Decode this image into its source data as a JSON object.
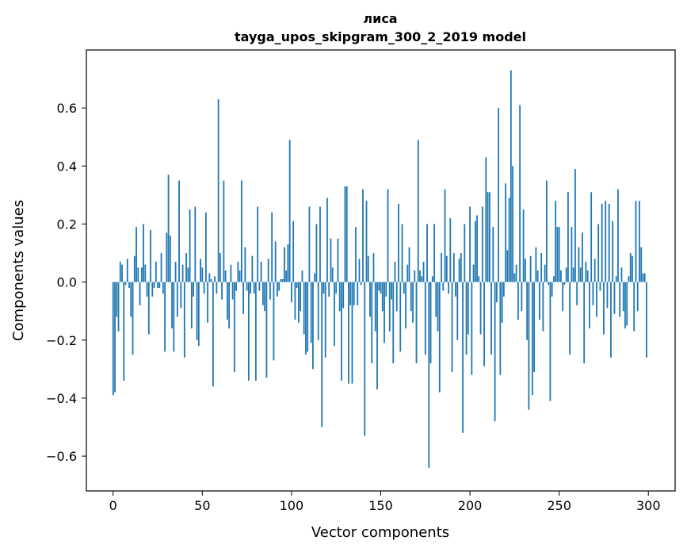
{
  "chart_data": {
    "type": "bar",
    "title": "лиса",
    "subtitle": "tayga_upos_skipgram_300_2_2019 model",
    "xlabel": "Vector components",
    "ylabel": "Components values",
    "xlim": [
      -15,
      315
    ],
    "ylim": [
      -0.72,
      0.8
    ],
    "x_ticks": [
      0,
      50,
      100,
      150,
      200,
      250,
      300
    ],
    "y_ticks": [
      -0.6,
      -0.4,
      -0.2,
      0.0,
      0.2,
      0.4,
      0.6
    ],
    "y_tick_labels": [
      "−0.6",
      "−0.4",
      "−0.2",
      "0.0",
      "0.2",
      "0.4",
      "0.6"
    ],
    "bar_color": "#1f77b4",
    "grid": false,
    "legend": "none",
    "values": [
      -0.39,
      -0.38,
      -0.12,
      -0.17,
      0.07,
      0.06,
      -0.34,
      -0.01,
      0.08,
      -0.02,
      -0.12,
      -0.25,
      0.09,
      0.19,
      0.05,
      -0.08,
      0.05,
      0.2,
      0.06,
      -0.05,
      -0.18,
      0.18,
      -0.05,
      -0.02,
      0.07,
      -0.02,
      -0.02,
      0.1,
      -0.04,
      -0.24,
      0.17,
      0.37,
      0.16,
      -0.16,
      -0.24,
      0.07,
      -0.12,
      0.35,
      -0.09,
      0.06,
      -0.26,
      0.1,
      0.05,
      0.25,
      -0.16,
      -0.05,
      0.26,
      -0.2,
      -0.22,
      0.08,
      0.05,
      -0.04,
      0.24,
      -0.14,
      0.03,
      0.01,
      -0.36,
      0.02,
      -0.04,
      0.63,
      0.1,
      -0.06,
      0.35,
      0.04,
      -0.13,
      -0.16,
      0.06,
      -0.06,
      -0.31,
      -0.03,
      0.07,
      0.04,
      0.35,
      -0.11,
      0.12,
      -0.03,
      -0.34,
      -0.04,
      0.09,
      -0.04,
      -0.34,
      0.26,
      -0.03,
      0.07,
      -0.08,
      -0.1,
      -0.33,
      0.08,
      -0.06,
      0.24,
      -0.27,
      0.14,
      -0.05,
      -0.03,
      0.01,
      0.01,
      0.12,
      0.04,
      0.13,
      0.49,
      -0.07,
      0.21,
      -0.13,
      -0.02,
      -0.14,
      -0.1,
      0.04,
      -0.18,
      -0.25,
      -0.24,
      0.26,
      -0.21,
      -0.3,
      0.03,
      0.2,
      -0.2,
      0.26,
      -0.5,
      -0.04,
      -0.26,
      0.29,
      -0.05,
      0.15,
      0.05,
      -0.22,
      -0.04,
      0.15,
      -0.1,
      -0.34,
      -0.09,
      0.33,
      0.33,
      -0.35,
      -0.08,
      -0.35,
      -0.08,
      0.19,
      -0.08,
      0.08,
      -0.01,
      0.32,
      -0.53,
      0.28,
      0.09,
      -0.12,
      -0.28,
      0.1,
      -0.17,
      -0.37,
      -0.03,
      -0.04,
      -0.1,
      -0.21,
      -0.05,
      0.32,
      -0.17,
      -0.06,
      -0.28,
      0.07,
      -0.1,
      0.27,
      -0.24,
      0.2,
      -0.04,
      -0.16,
      0.06,
      0.12,
      -0.1,
      -0.14,
      0.04,
      -0.28,
      0.49,
      0.04,
      0.02,
      0.07,
      -0.25,
      0.2,
      -0.64,
      -0.28,
      0.02,
      0.2,
      -0.12,
      -0.17,
      -0.38,
      0.1,
      -0.03,
      0.32,
      0.09,
      -0.04,
      0.22,
      -0.31,
      0.1,
      -0.05,
      -0.2,
      0.08,
      0.1,
      -0.52,
      0.2,
      -0.25,
      -0.18,
      0.26,
      -0.32,
      0.06,
      0.21,
      0.23,
      0.02,
      -0.18,
      0.26,
      -0.29,
      0.43,
      0.31,
      0.31,
      -0.25,
      0.19,
      -0.48,
      -0.07,
      0.6,
      -0.32,
      -0.14,
      -0.05,
      0.34,
      0.11,
      0.29,
      0.73,
      0.4,
      0.03,
      0.06,
      -0.13,
      0.61,
      -0.1,
      0.25,
      0.08,
      -0.2,
      -0.44,
      0.09,
      -0.39,
      -0.31,
      0.12,
      0.04,
      -0.13,
      0.1,
      -0.17,
      0.06,
      0.35,
      -0.01,
      -0.41,
      -0.05,
      0.02,
      0.28,
      0.19,
      0.19,
      0.04,
      -0.1,
      -0.01,
      0.05,
      0.31,
      -0.25,
      0.19,
      0.05,
      0.39,
      -0.08,
      0.12,
      0.05,
      0.17,
      -0.28,
      0.07,
      0.04,
      -0.16,
      0.31,
      -0.08,
      0.08,
      -0.12,
      0.2,
      -0.03,
      0.27,
      -0.18,
      0.28,
      -0.09,
      0.27,
      -0.26,
      0.21,
      -0.11,
      0.02,
      0.32,
      -0.12,
      0.05,
      -0.1,
      -0.16,
      -0.15,
      0.02,
      0.1,
      0.09,
      -0.17,
      0.28,
      -0.1,
      0.28,
      0.12,
      0.03,
      0.03,
      -0.26
    ]
  }
}
